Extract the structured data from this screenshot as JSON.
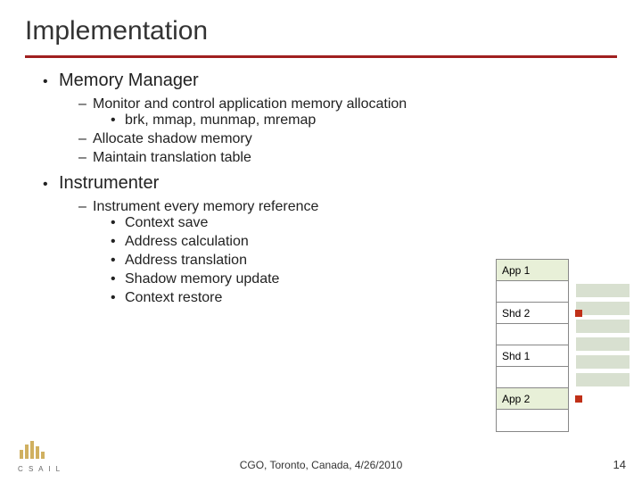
{
  "title": "Implementation",
  "sections": [
    {
      "heading": "Memory Manager",
      "items": [
        {
          "text": "Monitor and control application memory allocation",
          "sub": [
            "brk, mmap, munmap, mremap"
          ]
        },
        {
          "text": "Allocate shadow memory"
        },
        {
          "text": "Maintain translation table"
        }
      ]
    },
    {
      "heading": "Instrumenter",
      "items": [
        {
          "text": "Instrument every memory reference",
          "sub": [
            "Context save",
            "Address calculation",
            "Address translation",
            "Shadow memory update",
            "Context restore"
          ]
        }
      ]
    }
  ],
  "diagram": {
    "cells": [
      {
        "label": "App 1",
        "kind": "app",
        "marker": false
      },
      {
        "label": "",
        "kind": "blank",
        "marker": false
      },
      {
        "label": "Shd 2",
        "kind": "shd",
        "marker": true
      },
      {
        "label": "",
        "kind": "blank",
        "marker": false
      },
      {
        "label": "Shd 1",
        "kind": "shd",
        "marker": false
      },
      {
        "label": "",
        "kind": "blank",
        "marker": false
      },
      {
        "label": "App 2",
        "kind": "app",
        "marker": true
      },
      {
        "label": "",
        "kind": "blank",
        "marker": false
      }
    ],
    "colors": {
      "app_bg": "#e8f0d8",
      "shd_bg": "#ffffff",
      "blank_bg": "#ffffff",
      "border": "#888888",
      "marker": "#c03018",
      "bgbar": "#d8e0d0"
    }
  },
  "footer": "CGO, Toronto, Canada, 4/26/2010",
  "page_number": "14",
  "logo_text": "C S A I L",
  "colors": {
    "title_rule": "#a02020",
    "text": "#222222",
    "background": "#ffffff"
  }
}
